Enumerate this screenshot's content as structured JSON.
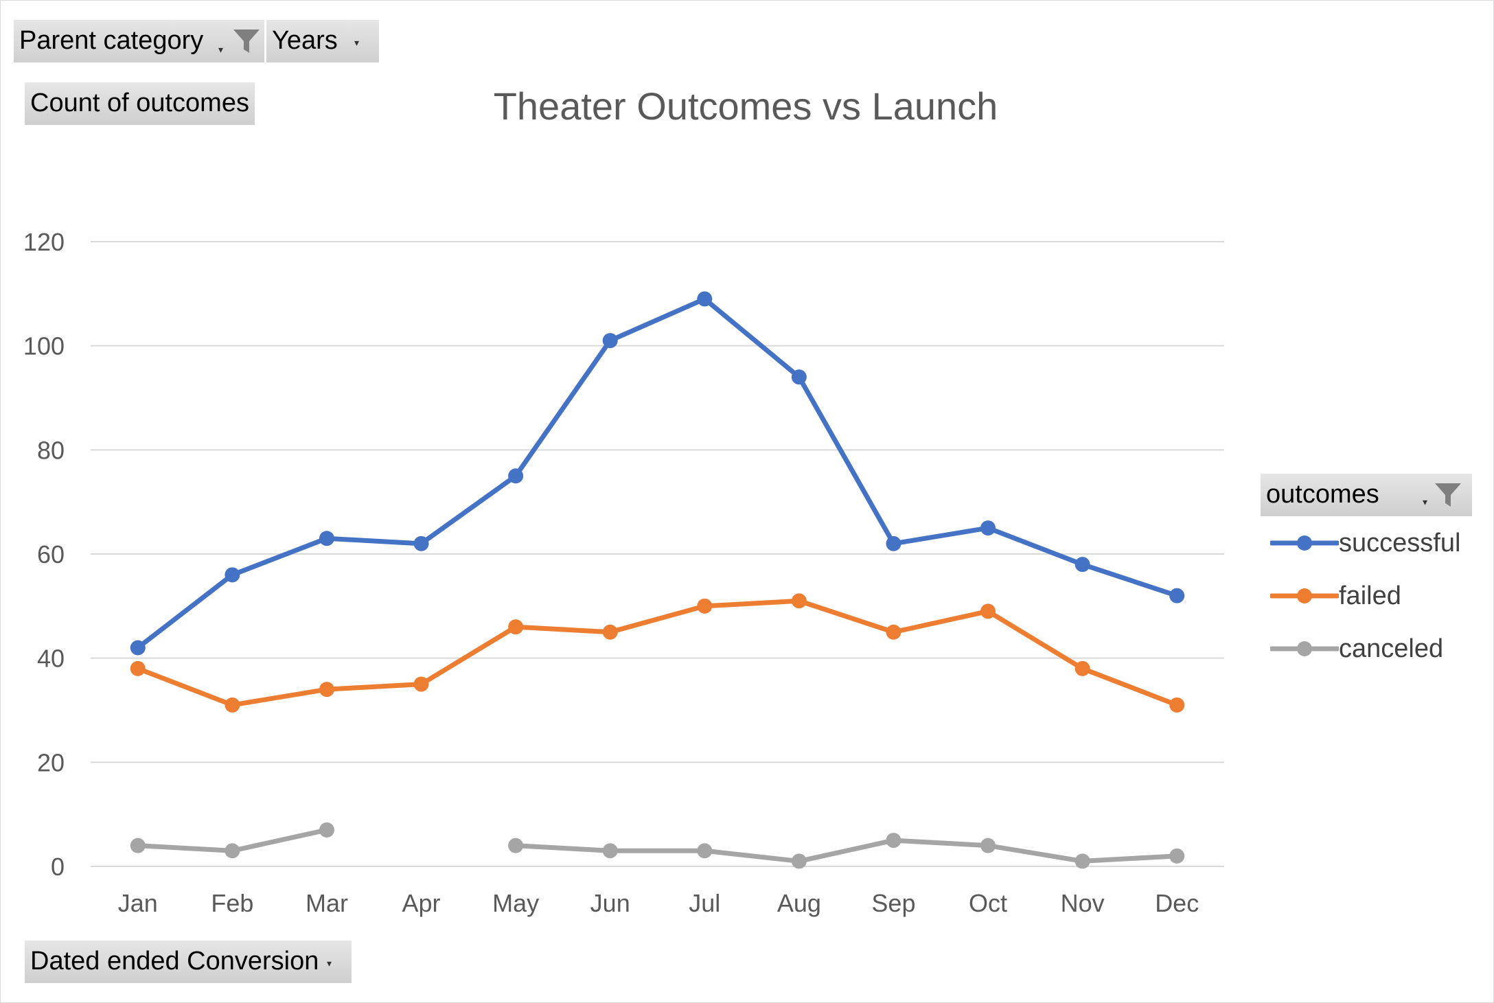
{
  "filters": {
    "parent_category": "Parent category",
    "years": "Years",
    "values_field": "Count of outcomes",
    "axis_field": "Dated ended Conversion",
    "legend_field": "outcomes"
  },
  "colors": {
    "successful": "#4472C4",
    "failed": "#ED7D31",
    "canceled": "#A5A5A5",
    "title": "#595959",
    "axis_text": "#595959",
    "gridline": "#D9D9D9"
  },
  "chart_data": {
    "type": "line",
    "title": "Theater Outcomes vs Launch",
    "xlabel": "",
    "ylabel": "",
    "categories": [
      "Jan",
      "Feb",
      "Mar",
      "Apr",
      "May",
      "Jun",
      "Jul",
      "Aug",
      "Sep",
      "Oct",
      "Nov",
      "Dec"
    ],
    "yticks": [
      "0",
      "20",
      "40",
      "60",
      "80",
      "100",
      "120"
    ],
    "ylim": [
      0,
      120
    ],
    "grid": true,
    "legend_position": "right",
    "series": [
      {
        "name": "successful",
        "values": [
          42,
          56,
          63,
          62,
          75,
          101,
          109,
          94,
          62,
          65,
          58,
          52
        ]
      },
      {
        "name": "failed",
        "values": [
          38,
          31,
          34,
          35,
          46,
          45,
          50,
          51,
          45,
          49,
          38,
          31
        ]
      },
      {
        "name": "canceled",
        "values": [
          4,
          3,
          7,
          null,
          4,
          3,
          3,
          1,
          5,
          4,
          1,
          2
        ]
      }
    ]
  }
}
